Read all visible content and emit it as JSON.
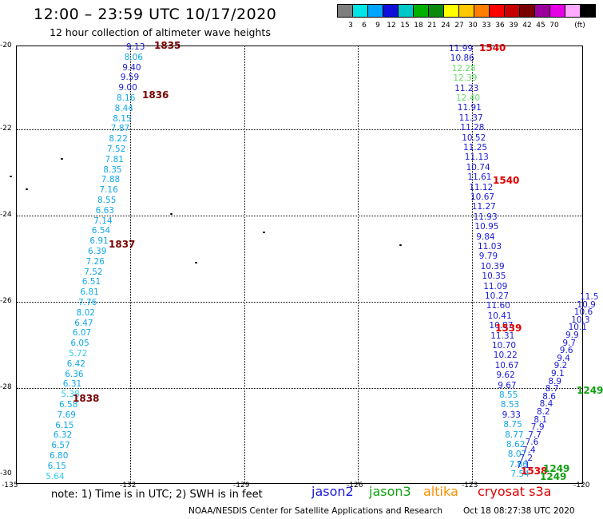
{
  "title": "12:00 – 23:59 UTC 10/17/2020",
  "subtitle": "12 hour collection of altimeter wave heights",
  "color_scale": {
    "unit": "(ft)",
    "bins": [
      {
        "color": "#7f7f7f",
        "label": "3"
      },
      {
        "color": "#00e5e5",
        "label": "6"
      },
      {
        "color": "#00a5ff",
        "label": "9"
      },
      {
        "color": "#1010d8",
        "label": "12"
      },
      {
        "color": "#00c8c8",
        "label": "15"
      },
      {
        "color": "#00b000",
        "label": "18"
      },
      {
        "color": "#0a8a0a",
        "label": "21"
      },
      {
        "color": "#ffff00",
        "label": "24"
      },
      {
        "color": "#ffc800",
        "label": "27"
      },
      {
        "color": "#ff8000",
        "label": "30"
      },
      {
        "color": "#ff0000",
        "label": "33"
      },
      {
        "color": "#c80000",
        "label": "36"
      },
      {
        "color": "#780000",
        "label": "39"
      },
      {
        "color": "#9b009b",
        "label": "42"
      },
      {
        "color": "#e600e6",
        "label": "45"
      },
      {
        "color": "#ffaaff",
        "label": "70"
      },
      {
        "color": "#000000",
        "label": ""
      }
    ]
  },
  "lat_labels": [
    "-20",
    "-22",
    "-24",
    "-26",
    "-28",
    "-30"
  ],
  "lon_labels": [
    "-135",
    "-132",
    "-129",
    "-126",
    "-123",
    "-120"
  ],
  "track1": {
    "values": [
      "9.13",
      "8.06",
      "9.40",
      "9.59",
      "9.00",
      "8.16",
      "8.44",
      "8.15",
      "7.87",
      "8.22",
      "7.52",
      "7.81",
      "8.35",
      "7.88",
      "7.16",
      "8.55",
      "6.63",
      "7.14",
      "6.54",
      "6.91",
      "6.39",
      "7.26",
      "7.52",
      "6.51",
      "6.81",
      "7.76",
      "8.02",
      "6.47",
      "6.07",
      "6.05",
      "5.72",
      "6.42",
      "6.36",
      "6.31",
      "5.38",
      "6.58",
      "7.69",
      "6.15",
      "6.32",
      "6.57",
      "6.80",
      "6.15",
      "5.64"
    ],
    "times": [
      "1835",
      "1836",
      "1837",
      "1838"
    ]
  },
  "track2": {
    "values": [
      "11.99",
      "10.86",
      "12.28",
      "12.39",
      "11.23",
      "12.40",
      "11.91",
      "11.37",
      "11.28",
      "10.52",
      "11.25",
      "11.13",
      "10.74",
      "11.61",
      "11.12",
      "10.67",
      "11.27",
      "11.93",
      "10.95",
      "9.84",
      "11.03",
      "9.79",
      "10.39",
      "10.35",
      "11.09",
      "10.27",
      "11.60",
      "10.41",
      "10.87",
      "11.31",
      "10.70",
      "10.22",
      "10.67",
      "9.62",
      "9.67",
      "8.55",
      "8.53",
      "9.33",
      "8.75",
      "8.77",
      "8.62",
      "8.07",
      "7.86",
      "7.54"
    ],
    "times": [
      "1540",
      "1540",
      "1539",
      "1538"
    ]
  },
  "track3": {
    "values": [
      "11.5",
      "10.9",
      "10.6",
      "10.3",
      "10.1",
      "9.9",
      "9.7",
      "9.6",
      "9.4",
      "9.2",
      "9.1",
      "8.9",
      "8.7",
      "8.6",
      "8.4",
      "8.2",
      "8.1",
      "7.9",
      "7.7",
      "7.6",
      "7.4",
      "7.2",
      "7.1"
    ],
    "times": [
      "1249",
      "1249",
      "1249"
    ]
  },
  "note": "note:  1) Time is in UTC;  2) SWH is in feet",
  "legend": [
    {
      "name": "jason2",
      "color": "#1a1ad8"
    },
    {
      "name": "jason3",
      "color": "#10a010"
    },
    {
      "name": "altika",
      "color": "#ff9000"
    },
    {
      "name": "cryosat s3a",
      "color": "#e00000"
    }
  ],
  "footer_left": "NOAA/NESDIS Center for Satellite Applications and Research",
  "footer_right": "Oct 18 08:27:38 UTC 2020"
}
